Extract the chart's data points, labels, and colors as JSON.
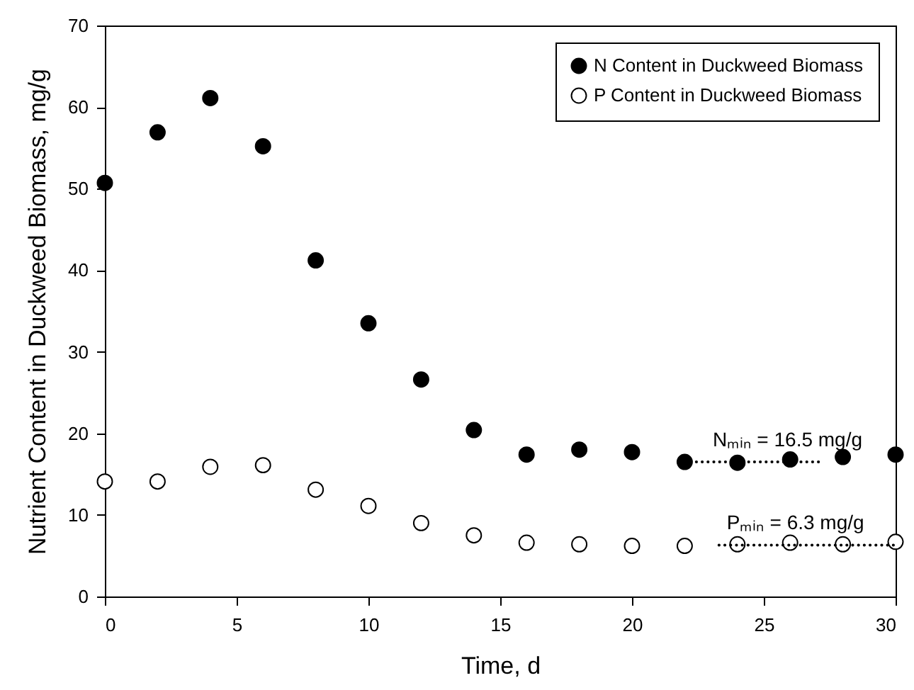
{
  "chart_data": {
    "type": "scatter",
    "xlabel": "Time, d",
    "ylabel": "Nutrient Content in Duckweed Biomass, mg/g",
    "x": [
      0,
      2,
      4,
      6,
      8,
      10,
      12,
      14,
      16,
      18,
      20,
      22,
      24,
      26,
      28,
      30
    ],
    "series": [
      {
        "name": "N Content in Duckweed Biomass",
        "color": "#000000",
        "values": [
          50.7,
          56.9,
          61.1,
          55.2,
          41.2,
          33.5,
          26.6,
          20.4,
          17.4,
          18.0,
          17.7,
          16.5,
          16.4,
          16.8,
          17.1,
          17.4
        ]
      },
      {
        "name": "P Content in Duckweed Biomass",
        "color": "#ffffff",
        "values": [
          14.1,
          14.1,
          15.9,
          16.1,
          13.1,
          11.1,
          9.0,
          7.5,
          6.6,
          6.4,
          6.2,
          6.2,
          6.4,
          6.6,
          6.4,
          6.7
        ]
      },
      {
        "type": "line",
        "color": "#000000",
        "line_style": "dotted",
        "marker": "none",
        "x": [
          22,
          27.1
        ],
        "values": [
          16.5,
          16.5
        ]
      },
      {
        "type": "line",
        "color": "#000000",
        "line_style": "dotted",
        "marker": "none",
        "x": [
          23.3,
          30
        ],
        "values": [
          6.3,
          6.3
        ]
      }
    ],
    "annotations": [
      {
        "text": "Nₘᵢₙ = 16.5 mg/g",
        "x": 25.9,
        "y": 16.5
      },
      {
        "text": "Pₘᵢₙ = 6.3 mg/g",
        "x": 26.2,
        "y": 6.3
      }
    ],
    "xlim": [
      0,
      30
    ],
    "xticks": [
      0,
      5,
      10,
      15,
      20,
      25,
      30
    ],
    "ylim": [
      0,
      70
    ],
    "yticks": [
      0,
      10,
      20,
      30,
      40,
      50,
      60,
      70
    ],
    "marker": "circle",
    "legend": "top right",
    "grid": false
  }
}
